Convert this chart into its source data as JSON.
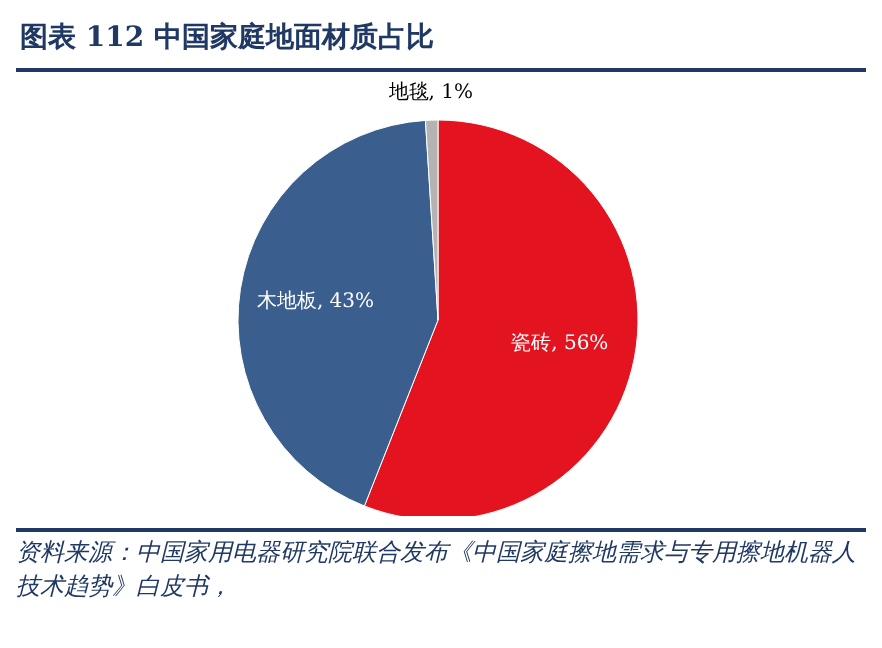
{
  "chart_data": {
    "type": "pie",
    "title": "图表 112  中国家庭地面材质占比",
    "categories": [
      "瓷砖",
      "木地板",
      "地毯"
    ],
    "values": [
      56,
      43,
      1
    ],
    "colors": [
      "#e3141f",
      "#3a5f8f",
      "#b3b3b3"
    ],
    "value_labels": [
      ", 56%",
      ", 43%",
      ", 1%"
    ],
    "legend": false,
    "annotations": [
      "资料来源：中国家用电器研究院联合发布《中国家庭擦地需求与专用擦地机器人技术趋势》白皮书，"
    ]
  }
}
